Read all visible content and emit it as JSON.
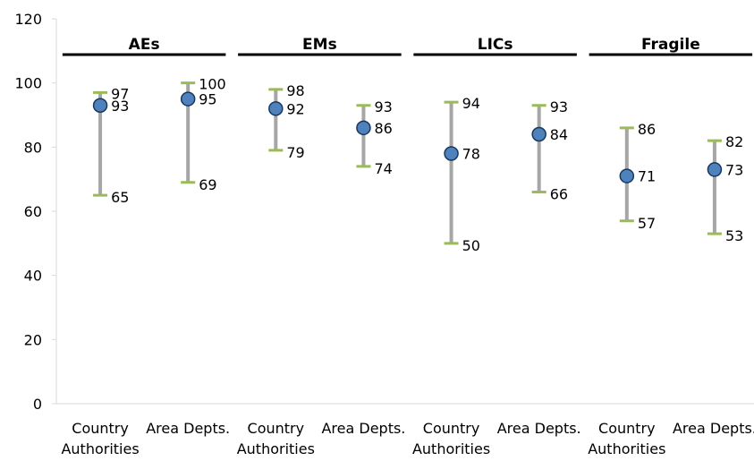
{
  "chart_data": {
    "type": "range-dot",
    "title": "",
    "xlabel": "",
    "ylabel": "",
    "ylim": [
      0,
      120
    ],
    "yticks": [
      0,
      20,
      40,
      60,
      80,
      100,
      120
    ],
    "grid": false,
    "legend": "none",
    "colors": {
      "whisker": "#a6a6a6",
      "cap": "#9bbb59",
      "dot_fill": "#4f81bd",
      "dot_stroke": "#17375e",
      "axis": "#d9d9d9",
      "group_line": "#000000"
    },
    "groups": [
      {
        "title": "AEs",
        "first": 0,
        "last": 1
      },
      {
        "title": "EMs",
        "first": 2,
        "last": 3
      },
      {
        "title": "LICs",
        "first": 4,
        "last": 5
      },
      {
        "title": "Fragile",
        "first": 6,
        "last": 7
      }
    ],
    "categories": [
      [
        "Country",
        "Authorities"
      ],
      [
        "Area Depts."
      ],
      [
        "Country",
        "Authorities"
      ],
      [
        "Area Depts."
      ],
      [
        "Country",
        "Authorities"
      ],
      [
        "Area Depts."
      ],
      [
        "Country",
        "Authorities"
      ],
      [
        "Area Depts."
      ]
    ],
    "series": [
      {
        "points": [
          {
            "high": 97,
            "mid": 93,
            "low": 65
          },
          {
            "high": 100,
            "mid": 95,
            "low": 69
          },
          {
            "high": 98,
            "mid": 92,
            "low": 79
          },
          {
            "high": 93,
            "mid": 86,
            "low": 74
          },
          {
            "high": 94,
            "mid": 78,
            "low": 50
          },
          {
            "high": 93,
            "mid": 84,
            "low": 66
          },
          {
            "high": 86,
            "mid": 71,
            "low": 57
          },
          {
            "high": 82,
            "mid": 73,
            "low": 53
          }
        ]
      }
    ]
  }
}
